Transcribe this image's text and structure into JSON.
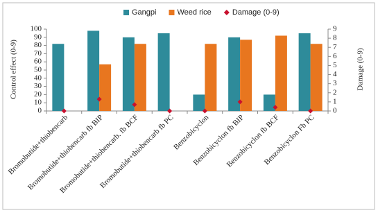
{
  "chart_data": {
    "type": "bar",
    "categories": [
      "Bromobutide+thiobencarb",
      "Bromobutide+thiobencarb fb BIP",
      "Bromobutide+thiobencarb. fb BCF",
      "Bromobutide+thiobencarb fb PC",
      "Benzobicyclon",
      "Benzobicyclon fb BIP",
      "Benzobicyclon fb BCF",
      "Benzobicyclon Fb PC"
    ],
    "series": [
      {
        "name": "Gangpi",
        "color": "#2e8b9a",
        "values": [
          82,
          98,
          90,
          95,
          20,
          90,
          20,
          95
        ]
      },
      {
        "name": "Weed rice",
        "color": "#e8761f",
        "values": [
          0,
          57,
          82,
          0,
          82,
          87,
          92,
          82
        ]
      },
      {
        "name": "Damage (0-9)",
        "color": "#c8102e",
        "axis": "y2",
        "values": [
          0,
          1.3,
          0.7,
          0,
          0,
          1.0,
          0.4,
          0
        ]
      }
    ],
    "y_label": "Control effect (0-9)",
    "y2_label": "Damage (0-9)",
    "ylim": [
      0,
      100
    ],
    "yticks": [
      0,
      10,
      20,
      30,
      40,
      50,
      60,
      70,
      80,
      90,
      100
    ],
    "y2lim": [
      0,
      9
    ],
    "y2ticks": [
      0,
      1,
      2,
      3,
      4,
      5,
      6,
      7,
      8,
      9
    ],
    "legend": "top"
  }
}
